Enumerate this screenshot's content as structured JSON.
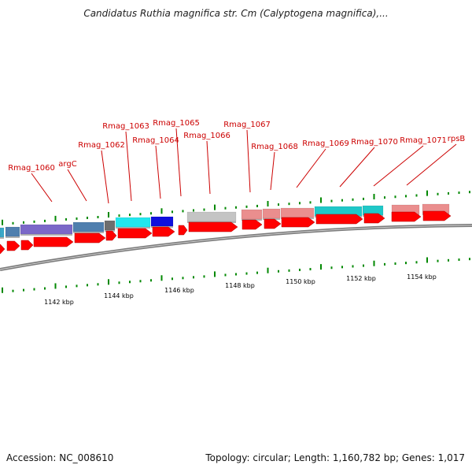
{
  "title": "Candidatus Ruthia magnifica str. Cm (Calyptogena magnifica),...",
  "footer": {
    "accession": "Accession: NC_008610",
    "summary": "Topology: circular; Length: 1,160,782 bp; Genes: 1,017"
  },
  "gene_labels": [
    {
      "id": "rmag-1060",
      "text": "Rmag_1060"
    },
    {
      "id": "argc",
      "text": "argC"
    },
    {
      "id": "rmag-1062",
      "text": "Rmag_1062"
    },
    {
      "id": "rmag-1063",
      "text": "Rmag_1063"
    },
    {
      "id": "rmag-1064",
      "text": "Rmag_1064"
    },
    {
      "id": "rmag-1065",
      "text": "Rmag_1065"
    },
    {
      "id": "rmag-1066",
      "text": "Rmag_1066"
    },
    {
      "id": "rmag-1067",
      "text": "Rmag_1067"
    },
    {
      "id": "rmag-1068",
      "text": "Rmag_1068"
    },
    {
      "id": "rmag-1069",
      "text": "Rmag_1069"
    },
    {
      "id": "rmag-1070",
      "text": "Rmag_1070"
    },
    {
      "id": "rmag-1071",
      "text": "Rmag_1071"
    },
    {
      "id": "rpsb",
      "text": "rpsB"
    }
  ],
  "axis_labels": [
    "1142 kbp",
    "1144 kbp",
    "1146 kbp",
    "1148 kbp",
    "1150 kbp",
    "1152 kbp",
    "1154 kbp"
  ],
  "colors": {
    "label_red": "#cc0000",
    "cds_red": "#ff0000",
    "tick_green": "#008800",
    "backbone": "#888888",
    "track_purple": "#7b68c8",
    "track_steel": "#4f7fae",
    "track_gray": "#6e6e6e",
    "track_cyan": "#22e7ee",
    "track_blue": "#1010dd",
    "track_silver": "#c4c4c4",
    "track_salmon": "#ea8e8e",
    "track_teal": "#1fc8c8"
  }
}
